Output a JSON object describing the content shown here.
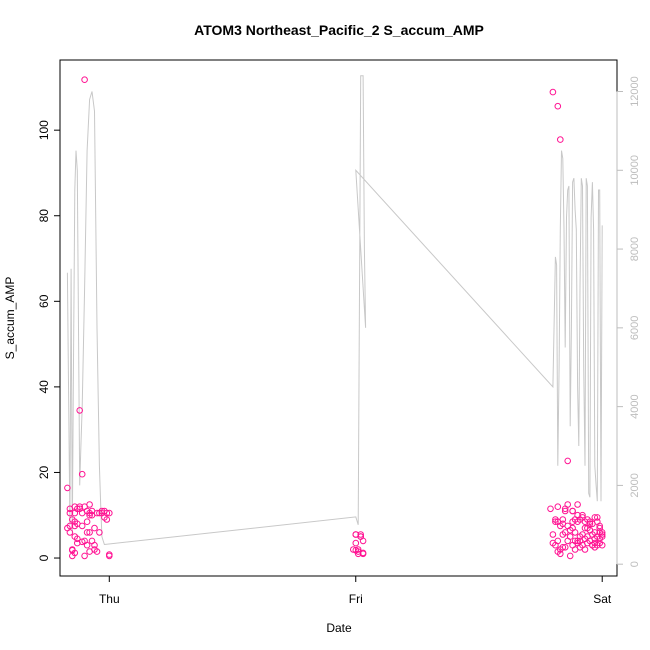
{
  "chart_data": {
    "type": "scatter",
    "title": "ATOM3 Northeast_Pacific_2 S_accum_AMP",
    "xlabel": "Date",
    "ylabel": "S_accum_AMP",
    "x_ticks": [
      {
        "x": 0.0,
        "label": "Thu"
      },
      {
        "x": 1.0,
        "label": "Fri"
      },
      {
        "x": 2.0,
        "label": "Sat"
      }
    ],
    "xlim": [
      -0.2,
      2.06
    ],
    "ylim": [
      -4.2,
      116.4
    ],
    "yticks": [
      0,
      20,
      40,
      60,
      80,
      100
    ],
    "y2lim": [
      -300,
      12800
    ],
    "y2ticks": [
      0,
      2000,
      4000,
      6000,
      8000,
      10000,
      12000
    ],
    "grid": false,
    "colors": {
      "points": "#ff1493",
      "line": "#c8c8c8",
      "right_axis": "#bdbdbd"
    },
    "series": [
      {
        "kind": "points",
        "x": [
          -0.17,
          -0.17,
          -0.16,
          -0.16,
          -0.15,
          -0.15,
          -0.14,
          -0.14,
          -0.13,
          -0.13,
          -0.12,
          -0.12,
          -0.11,
          -0.11,
          -0.11,
          -0.1,
          -0.1,
          -0.1,
          -0.09,
          -0.09,
          -0.09,
          -0.08,
          -0.08,
          -0.08,
          -0.07,
          -0.07,
          -0.07,
          -0.06,
          -0.06,
          -0.06,
          -0.05,
          -0.05,
          -0.04,
          -0.04,
          -0.03,
          -0.03,
          -0.02,
          -0.02,
          -0.01,
          -0.01,
          0.0,
          0.0,
          0.0,
          -0.14,
          -0.14,
          -0.14,
          -0.13,
          -0.16,
          -0.16,
          -0.15,
          -0.15,
          -0.14,
          -0.13,
          -0.12,
          -0.11,
          -0.1,
          -0.09,
          -0.08,
          -0.08,
          0.99,
          1.0,
          1.0,
          1.01,
          1.01,
          1.02,
          1.02,
          1.03,
          1.03,
          1.0,
          1.02,
          1.01,
          1.0,
          1.03,
          1.79,
          1.8,
          1.8,
          1.81,
          1.81,
          1.81,
          1.82,
          1.82,
          1.82,
          1.83,
          1.83,
          1.83,
          1.84,
          1.84,
          1.84,
          1.85,
          1.85,
          1.85,
          1.86,
          1.86,
          1.86,
          1.87,
          1.87,
          1.87,
          1.88,
          1.88,
          1.88,
          1.89,
          1.89,
          1.89,
          1.9,
          1.9,
          1.9,
          1.91,
          1.91,
          1.91,
          1.92,
          1.92,
          1.92,
          1.93,
          1.93,
          1.93,
          1.94,
          1.94,
          1.94,
          1.95,
          1.95,
          1.95,
          1.96,
          1.96,
          1.96,
          1.97,
          1.97,
          1.97,
          1.98,
          1.98,
          1.98,
          1.99,
          1.99,
          1.99,
          2.0,
          2.0,
          2.0,
          1.8,
          1.82,
          1.83,
          1.85,
          1.86,
          1.88,
          1.9,
          1.92,
          1.95,
          1.98,
          1.94,
          1.96,
          1.97,
          1.99,
          2.0,
          1.89,
          1.91,
          1.93,
          1.95,
          1.97,
          1.99,
          1.82,
          1.84,
          1.88,
          1.9
        ],
        "y": [
          16.4,
          7.0,
          6.0,
          11.5,
          9.0,
          1.8,
          12.0,
          1.2,
          8.0,
          3.5,
          11.5,
          34.5,
          10.5,
          3.8,
          19.6,
          0.5,
          12.0,
          111.8,
          11.0,
          8.5,
          3.0,
          12.5,
          6.0,
          1.5,
          11.0,
          4.0,
          10.0,
          7.0,
          2.0,
          3.0,
          1.5,
          10.5,
          6.0,
          10.5,
          11.0,
          10.5,
          9.5,
          11.0,
          10.5,
          9.0,
          10.5,
          0.8,
          0.5,
          8.5,
          7.5,
          5.0,
          4.5,
          7.5,
          10.5,
          2.0,
          0.5,
          10.5,
          11.5,
          12.0,
          7.5,
          4.0,
          6.0,
          10.5,
          10.0,
          2.0,
          5.5,
          5.5,
          1.5,
          1.0,
          5.0,
          5.0,
          4.0,
          1.0,
          1.8,
          5.5,
          2.0,
          3.5,
          1.2,
          11.5,
          5.5,
          3.5,
          3.0,
          9.0,
          8.5,
          12.0,
          8.5,
          4.0,
          1.0,
          7.5,
          2.0,
          8.0,
          9.0,
          2.5,
          11.5,
          6.0,
          2.5,
          12.5,
          7.5,
          4.0,
          6.5,
          5.0,
          0.5,
          8.5,
          7.0,
          3.0,
          6.0,
          9.0,
          2.0,
          10.0,
          3.5,
          8.5,
          9.0,
          4.0,
          2.5,
          9.5,
          5.5,
          3.0,
          7.0,
          8.5,
          2.0,
          9.0,
          5.0,
          3.5,
          8.0,
          4.0,
          6.5,
          8.0,
          5.5,
          3.0,
          9.5,
          6.0,
          2.5,
          8.5,
          5.0,
          3.0,
          7.0,
          4.5,
          3.5,
          6.0,
          5.0,
          3.0,
          108.9,
          105.6,
          97.8,
          11.0,
          22.7,
          11.0,
          12.5,
          10.0,
          8.5,
          9.5,
          7.0,
          3.0,
          4.5,
          6.0,
          5.5,
          4.0,
          5.0,
          4.5,
          6.5,
          3.5,
          7.5,
          1.5,
          5.5,
          11.0,
          4.0
        ]
      },
      {
        "kind": "line",
        "axis": "right",
        "x": [
          -0.17,
          -0.16,
          -0.155,
          -0.15,
          -0.145,
          -0.14,
          -0.135,
          -0.13,
          -0.125,
          -0.12,
          -0.115,
          -0.11,
          -0.105,
          -0.1,
          -0.09,
          -0.08,
          -0.07,
          -0.06,
          -0.05,
          -0.04,
          -0.035,
          -0.03,
          -0.025,
          -0.02,
          -0.015,
          -0.01,
          -0.005,
          -0.02,
          1.0,
          1.01,
          1.02,
          1.03,
          1.035,
          1.04,
          1.0,
          1.8,
          1.81,
          1.815,
          1.82,
          1.825,
          1.83,
          1.835,
          1.84,
          1.845,
          1.85,
          1.855,
          1.86,
          1.865,
          1.87,
          1.875,
          1.88,
          1.885,
          1.89,
          1.895,
          1.9,
          1.905,
          1.91,
          1.915,
          1.92,
          1.925,
          1.93,
          1.935,
          1.94,
          1.945,
          1.95,
          1.955,
          1.96,
          1.965,
          1.97,
          1.975,
          1.98,
          1.985,
          1.99,
          1.995,
          2.0
        ],
        "y": [
          7400,
          1000,
          7500,
          800,
          5500,
          9500,
          10500,
          10000,
          6000,
          2000,
          3000,
          4000,
          5500,
          7000,
          10500,
          11800,
          12000,
          11500,
          6000,
          2500,
          1500,
          700,
          600,
          500,
          500,
          500,
          500,
          500,
          1200,
          1000,
          12400,
          12400,
          8000,
          6000,
          10000,
          4500,
          7800,
          7600,
          2500,
          5000,
          8500,
          10500,
          10300,
          8500,
          5500,
          8800,
          9500,
          9600,
          3500,
          6000,
          9700,
          9800,
          9000,
          8500,
          4500,
          3000,
          7000,
          9800,
          9600,
          5000,
          2500,
          9800,
          9600,
          1800,
          1700,
          8800,
          9700,
          8500,
          2500,
          2000,
          1600,
          9500,
          9500,
          1600,
          8600
        ]
      }
    ]
  }
}
